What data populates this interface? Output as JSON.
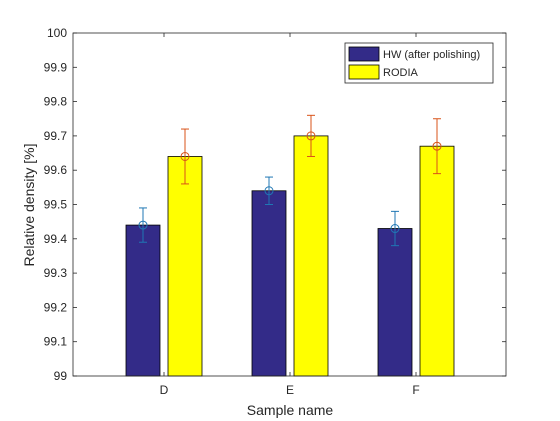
{
  "chart_data": {
    "type": "bar",
    "title": "",
    "xlabel": "Sample name",
    "ylabel": "Relative density [%]",
    "categories": [
      "D",
      "E",
      "F"
    ],
    "ylim": [
      99,
      100
    ],
    "yticks": [
      "99",
      "99.1",
      "99.2",
      "99.3",
      "99.4",
      "99.5",
      "99.6",
      "99.7",
      "99.8",
      "99.9",
      "100"
    ],
    "series": [
      {
        "name": "HW (after polishing)",
        "color": "#332b88",
        "values": [
          99.44,
          99.54,
          99.43
        ],
        "error_low": [
          99.39,
          99.5,
          99.38
        ],
        "error_high": [
          99.49,
          99.58,
          99.48
        ],
        "errorbar_color": "#1f77b4"
      },
      {
        "name": "RODIA",
        "color": "#ffff00",
        "values": [
          99.64,
          99.7,
          99.67
        ],
        "error_low": [
          99.56,
          99.64,
          99.59
        ],
        "error_high": [
          99.72,
          99.76,
          99.75
        ],
        "errorbar_color": "#d95319"
      }
    ],
    "legend_position": "top-right",
    "grid": false
  }
}
